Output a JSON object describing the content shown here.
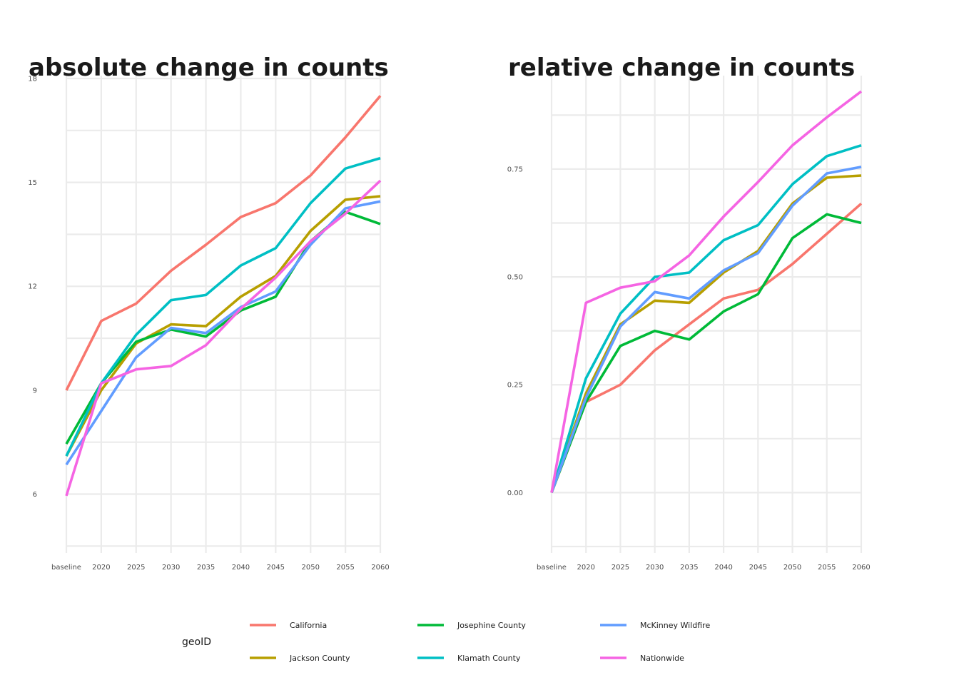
{
  "chart_data": [
    {
      "type": "line",
      "title": "absolute change in counts",
      "xlabel": "",
      "ylabel": "",
      "categories": [
        "baseline",
        "2020",
        "2025",
        "2030",
        "2035",
        "2040",
        "2045",
        "2050",
        "2055",
        "2060"
      ],
      "ylim": [
        4.3,
        18.0
      ],
      "yticks": [
        6,
        9,
        12,
        15,
        18
      ],
      "grid": true,
      "series": [
        {
          "name": "California",
          "color": "#F8766D",
          "values": [
            9.0,
            11.0,
            11.5,
            12.45,
            13.2,
            14.0,
            14.4,
            15.2,
            16.3,
            17.5
          ]
        },
        {
          "name": "Jackson County",
          "color": "#B79F00",
          "values": [
            7.1,
            9.0,
            10.35,
            10.9,
            10.85,
            11.7,
            12.3,
            13.6,
            14.5,
            14.6
          ]
        },
        {
          "name": "Josephine County",
          "color": "#00BA38",
          "values": [
            7.45,
            9.2,
            10.4,
            10.75,
            10.55,
            11.3,
            11.7,
            13.3,
            14.15,
            13.8
          ]
        },
        {
          "name": "Klamath County",
          "color": "#00BFC4",
          "values": [
            7.1,
            9.2,
            10.6,
            11.6,
            11.75,
            12.6,
            13.1,
            14.4,
            15.4,
            15.7
          ]
        },
        {
          "name": "McKinney Wildfire",
          "color": "#619CFF",
          "values": [
            6.85,
            8.4,
            9.95,
            10.8,
            10.65,
            11.4,
            11.85,
            13.2,
            14.25,
            14.45
          ]
        },
        {
          "name": "Nationwide",
          "color": "#F564E3",
          "values": [
            5.95,
            9.2,
            9.6,
            9.7,
            10.3,
            11.35,
            12.25,
            13.3,
            14.1,
            15.05
          ]
        }
      ]
    },
    {
      "type": "line",
      "title": "relative change in counts",
      "xlabel": "",
      "ylabel": "",
      "categories": [
        "baseline",
        "2020",
        "2025",
        "2030",
        "2035",
        "2040",
        "2045",
        "2050",
        "2055",
        "2060"
      ],
      "ylim": [
        -0.14,
        0.96
      ],
      "yticks": [
        0.0,
        0.25,
        0.5,
        0.75
      ],
      "ytick_labels": [
        "0.00",
        "0.25",
        "0.50",
        "0.75"
      ],
      "grid": true,
      "series": [
        {
          "name": "California",
          "color": "#F8766D",
          "values": [
            0.0,
            0.21,
            0.25,
            0.33,
            0.39,
            0.45,
            0.47,
            0.53,
            0.6,
            0.67
          ]
        },
        {
          "name": "Jackson County",
          "color": "#B79F00",
          "values": [
            0.0,
            0.23,
            0.39,
            0.445,
            0.44,
            0.51,
            0.56,
            0.67,
            0.73,
            0.735
          ]
        },
        {
          "name": "Josephine County",
          "color": "#00BA38",
          "values": [
            0.0,
            0.21,
            0.34,
            0.375,
            0.355,
            0.42,
            0.46,
            0.59,
            0.645,
            0.625
          ]
        },
        {
          "name": "Klamath County",
          "color": "#00BFC4",
          "values": [
            0.0,
            0.265,
            0.415,
            0.5,
            0.51,
            0.585,
            0.62,
            0.715,
            0.78,
            0.805
          ]
        },
        {
          "name": "McKinney Wildfire",
          "color": "#619CFF",
          "values": [
            0.0,
            0.22,
            0.385,
            0.465,
            0.45,
            0.515,
            0.555,
            0.665,
            0.74,
            0.755
          ]
        },
        {
          "name": "Nationwide",
          "color": "#F564E3",
          "values": [
            0.0,
            0.44,
            0.475,
            0.49,
            0.55,
            0.64,
            0.72,
            0.805,
            0.87,
            0.93
          ]
        }
      ]
    }
  ],
  "legend": {
    "title": "geoID",
    "placement": "bottom",
    "items": [
      "California",
      "Josephine County",
      "McKinney Wildfire",
      "Jackson County",
      "Klamath County",
      "Nationwide"
    ]
  }
}
